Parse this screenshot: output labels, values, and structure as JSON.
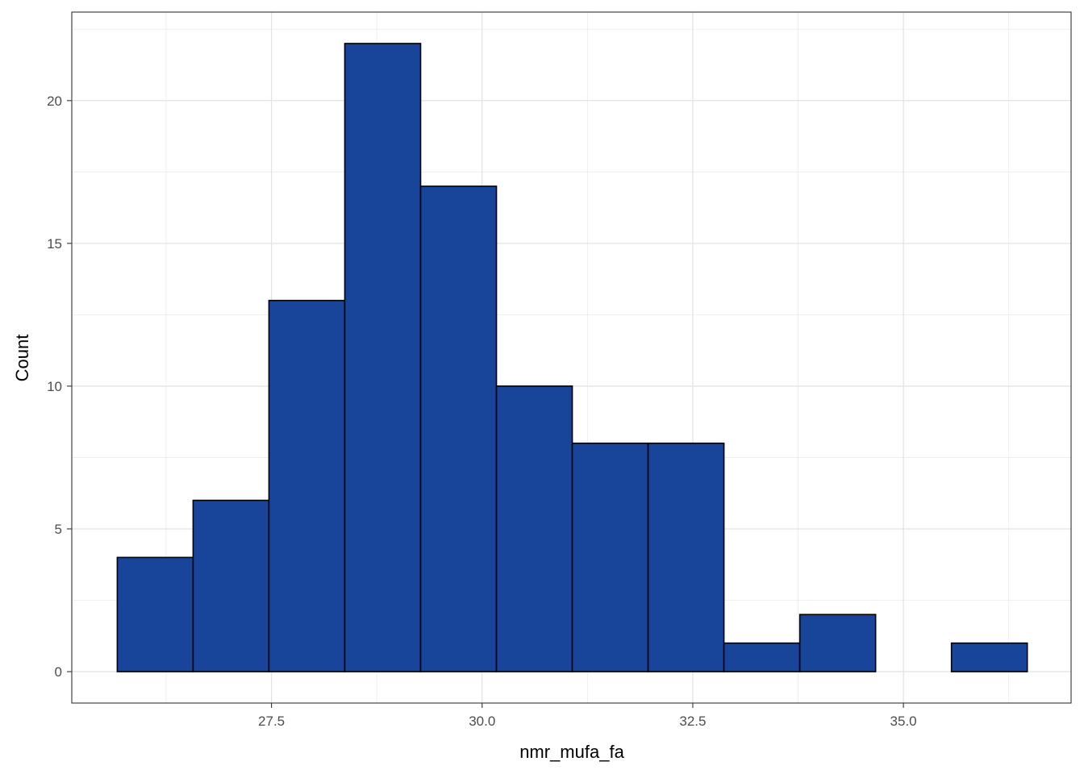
{
  "chart_data": {
    "type": "bar",
    "subtype": "histogram",
    "title": "",
    "xlabel": "nmr_mufa_fa",
    "ylabel": "Count",
    "xlim": [
      25.13,
      36.99
    ],
    "ylim": [
      -1.1,
      23.1
    ],
    "x_ticks": [
      27.5,
      30.0,
      32.5,
      35.0
    ],
    "x_tick_labels": [
      "27.5",
      "30.0",
      "32.5",
      "35.0"
    ],
    "y_ticks": [
      0,
      5,
      10,
      15,
      20
    ],
    "y_tick_labels": [
      "0",
      "5",
      "10",
      "15",
      "20"
    ],
    "grid": true,
    "legend": "none",
    "bar_fill": "#18449A",
    "bar_outline": "#000000",
    "bins": [
      {
        "x_start": 25.67,
        "x_end": 26.57,
        "count": 4
      },
      {
        "x_start": 26.57,
        "x_end": 27.47,
        "count": 6
      },
      {
        "x_start": 27.47,
        "x_end": 28.37,
        "count": 13
      },
      {
        "x_start": 28.37,
        "x_end": 29.27,
        "count": 22
      },
      {
        "x_start": 29.27,
        "x_end": 30.17,
        "count": 17
      },
      {
        "x_start": 30.17,
        "x_end": 31.07,
        "count": 10
      },
      {
        "x_start": 31.07,
        "x_end": 31.97,
        "count": 8
      },
      {
        "x_start": 31.97,
        "x_end": 32.87,
        "count": 8
      },
      {
        "x_start": 32.87,
        "x_end": 33.77,
        "count": 1
      },
      {
        "x_start": 33.77,
        "x_end": 34.67,
        "count": 2
      },
      {
        "x_start": 34.67,
        "x_end": 35.57,
        "count": 0
      },
      {
        "x_start": 35.57,
        "x_end": 36.47,
        "count": 1
      }
    ]
  }
}
